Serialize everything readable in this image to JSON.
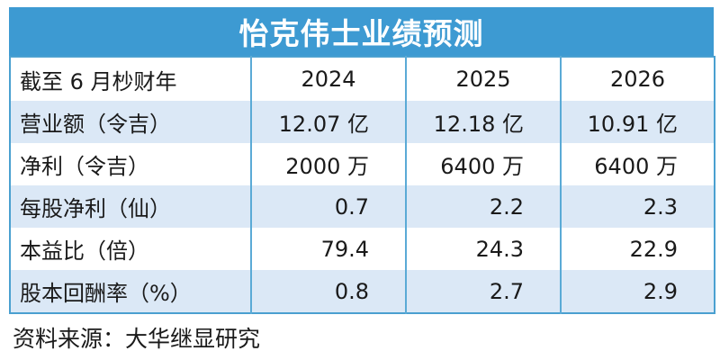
{
  "title": "怡克伟士业绩预测",
  "header": {
    "label": "截至 6 月杪财年",
    "years": [
      "2024",
      "2025",
      "2026"
    ]
  },
  "rows": [
    {
      "label": "营业额（令吉）",
      "values": [
        "12.07 亿",
        "12.18 亿",
        "10.91 亿"
      ]
    },
    {
      "label": "净利（令吉）",
      "values": [
        "2000 万",
        "6400 万",
        "6400 万"
      ]
    },
    {
      "label": "每股净利（仙）",
      "values": [
        "0.7",
        "2.2",
        "2.3"
      ]
    },
    {
      "label": "本益比（倍）",
      "values": [
        "79.4",
        "24.3",
        "22.9"
      ]
    },
    {
      "label": "股本回酬率（%）",
      "values": [
        "0.8",
        "2.7",
        "2.9"
      ]
    }
  ],
  "source": "资料来源：大华继显研究",
  "colors": {
    "title_bg": "#3d9ad2",
    "shaded_row": "#dbe8f6",
    "rule": "#5aaad6"
  }
}
